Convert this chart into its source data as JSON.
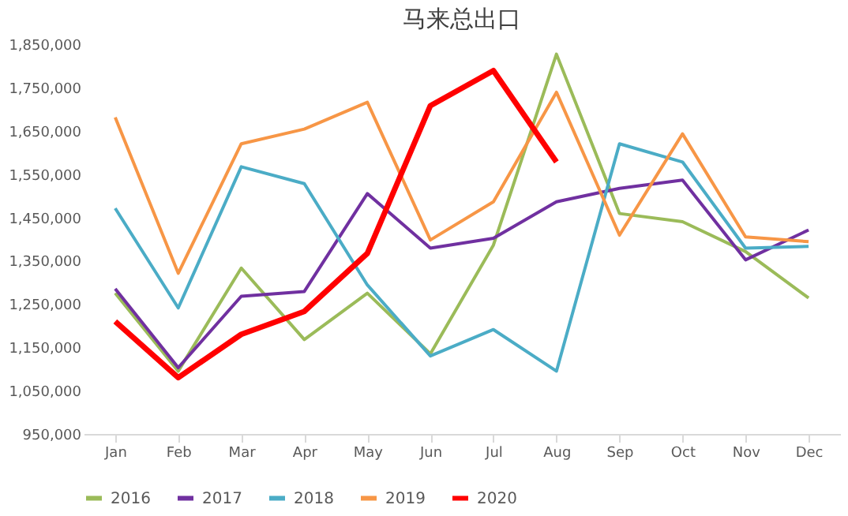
{
  "chart_data": {
    "type": "line",
    "title": "马来总出口",
    "categories": [
      "Jan",
      "Feb",
      "Mar",
      "Apr",
      "May",
      "Jun",
      "Jul",
      "Aug",
      "Sep",
      "Oct",
      "Nov",
      "Dec"
    ],
    "series": [
      {
        "name": "2016",
        "color": "#9bbb59",
        "values": [
          1275000,
          1095000,
          1333000,
          1168000,
          1275000,
          1135000,
          1386000,
          1827000,
          1459000,
          1440000,
          1371000,
          1264000
        ]
      },
      {
        "name": "2017",
        "color": "#7030a0",
        "values": [
          1285000,
          1103000,
          1268000,
          1279000,
          1505000,
          1379000,
          1402000,
          1486000,
          1517000,
          1536000,
          1352000,
          1421000
        ]
      },
      {
        "name": "2018",
        "color": "#4bacc6",
        "values": [
          1471000,
          1241000,
          1567000,
          1528000,
          1294000,
          1130000,
          1191000,
          1095000,
          1620000,
          1578000,
          1379000,
          1383000
        ]
      },
      {
        "name": "2019",
        "color": "#f79646",
        "values": [
          1681000,
          1321000,
          1620000,
          1654000,
          1716000,
          1398000,
          1486000,
          1739000,
          1409000,
          1643000,
          1405000,
          1394000
        ]
      },
      {
        "name": "2020",
        "color": "#ff0000",
        "values": [
          1210000,
          1080000,
          1180000,
          1233000,
          1367000,
          1708000,
          1789000,
          1578000,
          null,
          null,
          null,
          null
        ]
      }
    ],
    "ylim": [
      950000,
      1850000
    ],
    "yticks": [
      {
        "value": 950000,
        "label": "950,000"
      },
      {
        "value": 1050000,
        "label": "1,050,000"
      },
      {
        "value": 1150000,
        "label": "1,150,000"
      },
      {
        "value": 1250000,
        "label": "1,250,000"
      },
      {
        "value": 1350000,
        "label": "1,350,000"
      },
      {
        "value": 1450000,
        "label": "1,450,000"
      },
      {
        "value": 1550000,
        "label": "1,550,000"
      },
      {
        "value": 1650000,
        "label": "1,650,000"
      },
      {
        "value": 1750000,
        "label": "1,750,000"
      },
      {
        "value": 1850000,
        "label": "1,850,000"
      }
    ],
    "grid": false,
    "legend": "bottom",
    "marker": "none",
    "line_style": "solid"
  }
}
